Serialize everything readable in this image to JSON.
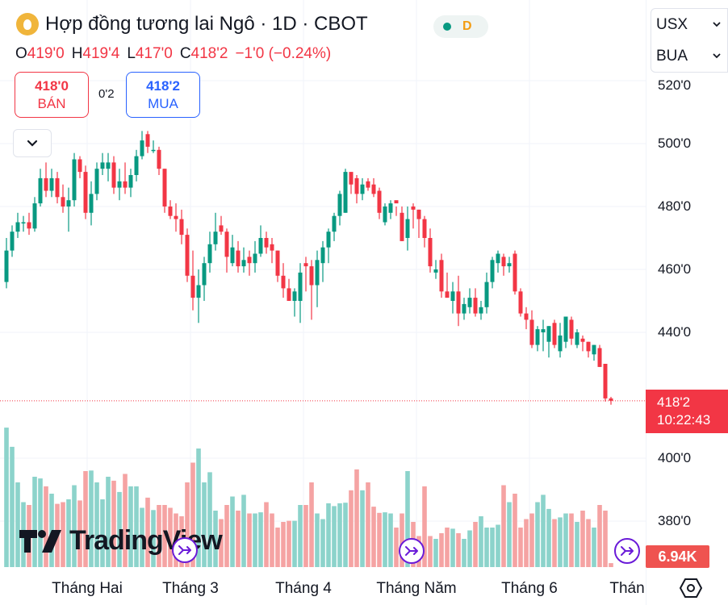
{
  "header": {
    "title": "Hợp đồng tương lai Ngô · 1D · CBOT",
    "status_letter": "D",
    "ohlc": {
      "o_label": "O",
      "o": "419'0",
      "h_label": "H",
      "h": "419'4",
      "l_label": "L",
      "l": "417'0",
      "c_label": "C",
      "c": "418'2",
      "change": "−1'0 (−0.24%)"
    },
    "sell": {
      "price": "418'0",
      "label": "BÁN"
    },
    "spread": "0'2",
    "buy": {
      "price": "418'2",
      "label": "MUA"
    }
  },
  "selectors": {
    "currency": "USX",
    "unit": "BUA"
  },
  "price_axis": {
    "labels": [
      "520'0",
      "500'0",
      "480'0",
      "460'0",
      "440'0",
      "400'0",
      "380'0"
    ]
  },
  "current": {
    "price": "418'2",
    "countdown": "10:22:43",
    "volume": "6.94K"
  },
  "time_axis": {
    "labels": [
      "Tháng Hai",
      "Tháng 3",
      "Tháng 4",
      "Tháng Năm",
      "Tháng 6",
      "Thán"
    ]
  },
  "brand": "TradingView",
  "colors": {
    "up": "#089981",
    "down": "#f23645",
    "vol_up": "#8cd3cb",
    "vol_down": "#f5a3a3",
    "event": "#6a1bd8"
  },
  "chart_data": {
    "type": "candlestick",
    "price_ticks": [
      520,
      500,
      480,
      460,
      440,
      400,
      380
    ],
    "last_price": 418.25,
    "candles_ohlcv": [
      [
        456,
        470,
        454,
        466,
        247
      ],
      [
        466,
        474,
        464,
        472,
        213
      ],
      [
        472,
        478,
        470,
        475,
        150
      ],
      [
        475,
        477,
        472,
        475,
        115
      ],
      [
        475,
        478,
        471,
        473,
        110
      ],
      [
        473,
        483,
        472,
        481,
        160
      ],
      [
        481,
        492,
        480,
        489,
        157
      ],
      [
        489,
        494,
        483,
        485,
        143
      ],
      [
        485,
        492,
        483,
        489,
        130
      ],
      [
        489,
        491,
        481,
        483,
        112
      ],
      [
        483,
        487,
        478,
        480,
        115
      ],
      [
        480,
        486,
        472,
        482,
        120
      ],
      [
        482,
        497,
        480,
        495,
        145
      ],
      [
        495,
        496,
        489,
        491,
        118
      ],
      [
        491,
        493,
        476,
        478,
        170
      ],
      [
        478,
        488,
        474,
        484,
        171
      ],
      [
        484,
        494,
        482,
        492,
        150
      ],
      [
        492,
        497,
        490,
        494,
        120
      ],
      [
        492,
        497,
        488,
        494,
        160
      ],
      [
        494,
        496,
        484,
        486,
        153
      ],
      [
        486,
        492,
        482,
        488,
        133
      ],
      [
        488,
        494,
        484,
        486,
        165
      ],
      [
        486,
        492,
        483,
        490,
        143
      ],
      [
        490,
        498,
        488,
        496,
        143
      ],
      [
        496,
        504,
        495,
        501,
        105
      ],
      [
        503,
        504,
        497,
        499,
        123
      ],
      [
        498,
        501,
        497,
        498,
        101
      ],
      [
        498,
        499,
        490,
        492,
        110
      ],
      [
        492,
        492,
        478,
        480,
        110
      ],
      [
        480,
        482,
        476,
        477,
        105
      ],
      [
        477,
        481,
        472,
        476,
        95
      ],
      [
        476,
        479,
        468,
        471,
        90
      ],
      [
        471,
        473,
        456,
        458,
        150
      ],
      [
        458,
        466,
        447,
        451,
        185
      ],
      [
        451,
        460,
        443,
        455,
        210
      ],
      [
        455,
        464,
        450,
        462,
        150
      ],
      [
        462,
        472,
        459,
        468,
        168
      ],
      [
        468,
        478,
        466,
        472,
        100
      ],
      [
        474,
        477,
        471,
        472,
        85
      ],
      [
        472,
        473,
        459,
        464,
        110
      ],
      [
        462,
        471,
        461,
        467,
        125
      ],
      [
        466,
        469,
        459,
        461,
        100
      ],
      [
        461,
        467,
        459,
        463,
        128
      ],
      [
        464,
        466,
        458,
        462,
        95
      ],
      [
        462,
        469,
        459,
        465,
        95
      ],
      [
        465,
        474,
        464,
        470,
        97
      ],
      [
        470,
        472,
        465,
        467,
        115
      ],
      [
        468,
        470,
        462,
        466,
        95
      ],
      [
        466,
        466,
        456,
        458,
        70
      ],
      [
        458,
        462,
        451,
        454,
        80
      ],
      [
        454,
        457,
        450,
        450,
        82
      ],
      [
        450,
        454,
        445,
        453,
        82
      ],
      [
        450,
        462,
        443,
        459,
        110
      ],
      [
        462,
        464,
        453,
        461,
        110
      ],
      [
        461,
        463,
        444,
        455,
        150
      ],
      [
        455,
        466,
        448,
        463,
        95
      ],
      [
        462,
        469,
        456,
        467,
        85
      ],
      [
        467,
        473,
        462,
        472,
        113
      ],
      [
        472,
        478,
        469,
        477,
        108
      ],
      [
        477,
        485,
        474,
        484,
        113
      ],
      [
        478,
        492,
        478,
        491,
        114
      ],
      [
        491,
        490,
        484,
        487,
        136
      ],
      [
        489,
        490,
        481,
        484,
        173
      ],
      [
        484,
        489,
        482,
        487,
        136
      ],
      [
        488,
        489,
        485,
        486,
        150
      ],
      [
        487,
        489,
        483,
        484,
        107
      ],
      [
        485,
        486,
        476,
        478,
        96
      ],
      [
        475,
        481,
        474,
        480,
        97
      ],
      [
        478,
        482,
        476,
        481,
        95
      ],
      [
        482,
        480,
        477,
        481,
        70
      ],
      [
        478,
        480,
        469,
        469,
        95
      ],
      [
        470,
        480,
        466,
        476,
        170
      ],
      [
        480,
        481,
        473,
        479,
        80
      ],
      [
        479,
        479,
        470,
        476,
        55
      ],
      [
        476,
        477,
        467,
        470,
        143
      ],
      [
        470,
        473,
        459,
        461,
        55
      ],
      [
        459,
        463,
        457,
        460,
        50
      ],
      [
        463,
        465,
        451,
        453,
        60
      ],
      [
        453,
        459,
        451,
        451,
        70
      ],
      [
        450,
        456,
        446,
        453,
        68
      ],
      [
        453,
        458,
        442,
        446,
        60
      ],
      [
        446,
        451,
        444,
        449,
        50
      ],
      [
        448,
        454,
        446,
        451,
        65
      ],
      [
        451,
        454,
        445,
        446,
        80
      ],
      [
        446,
        450,
        444,
        448,
        90
      ],
      [
        448,
        459,
        446,
        456,
        70
      ],
      [
        456,
        464,
        454,
        463,
        70
      ],
      [
        462,
        466,
        459,
        465,
        75
      ],
      [
        464,
        465,
        458,
        461,
        145
      ],
      [
        461,
        464,
        459,
        462,
        115
      ],
      [
        465,
        466,
        452,
        453,
        130
      ],
      [
        453,
        454,
        445,
        446,
        70
      ],
      [
        446,
        448,
        441,
        444,
        85
      ],
      [
        444,
        447,
        435,
        436,
        95
      ],
      [
        436,
        442,
        434,
        441,
        115
      ],
      [
        440,
        444,
        434,
        441,
        128
      ],
      [
        437,
        442,
        432,
        442,
        103
      ],
      [
        443,
        444,
        435,
        436,
        85
      ],
      [
        434,
        443,
        432,
        439,
        88
      ],
      [
        437,
        445,
        435,
        445,
        95
      ],
      [
        444,
        445,
        436,
        438,
        95
      ],
      [
        436,
        441,
        435,
        440,
        80
      ],
      [
        438,
        439,
        434,
        437,
        100
      ],
      [
        437,
        437,
        432,
        434,
        85
      ],
      [
        433,
        436,
        431,
        436,
        70
      ],
      [
        435,
        436,
        429,
        429,
        110
      ],
      [
        430,
        430,
        418,
        419,
        100
      ],
      [
        419,
        419.5,
        417,
        418.25,
        7
      ]
    ]
  }
}
